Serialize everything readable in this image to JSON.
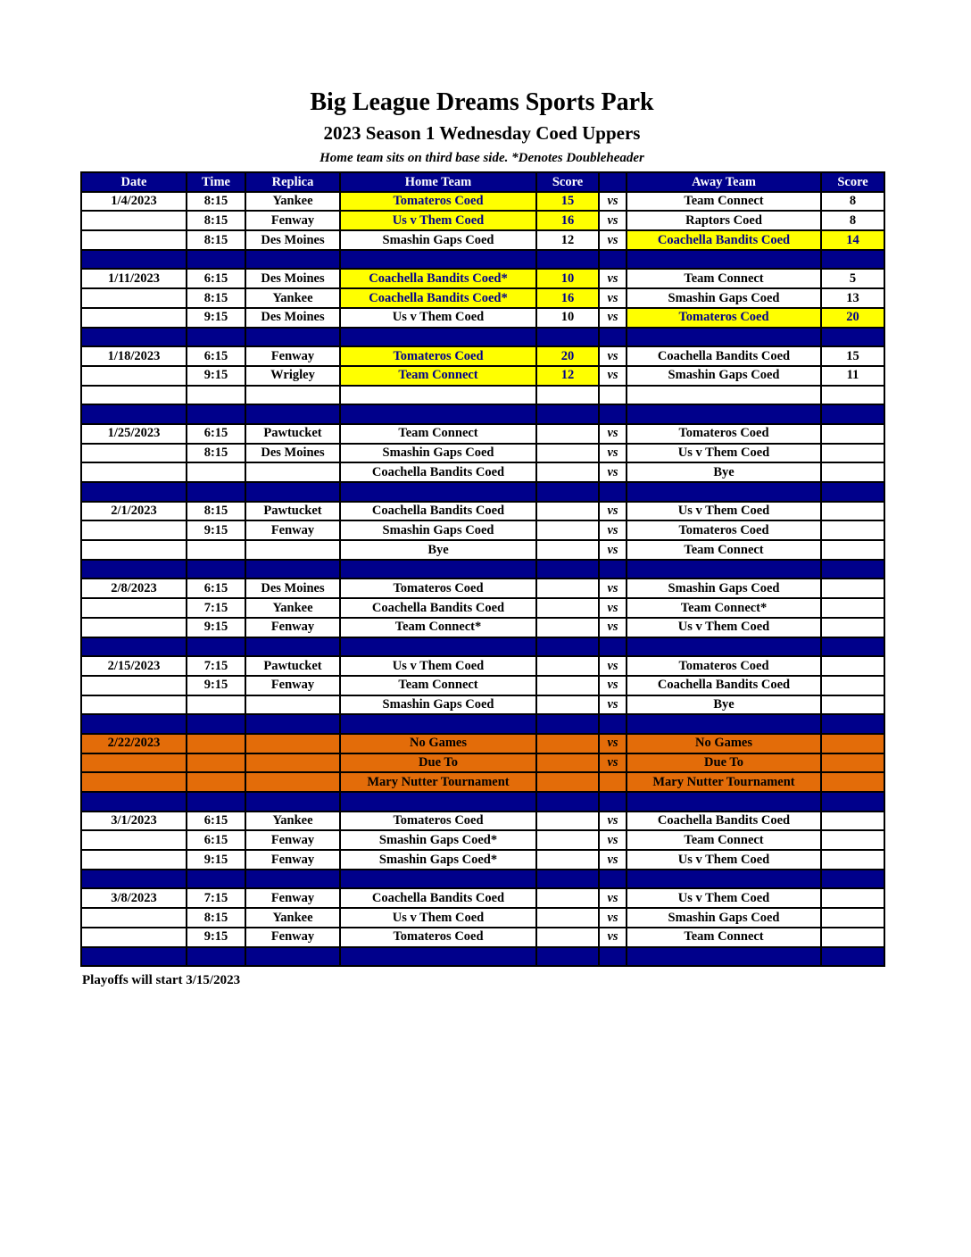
{
  "page": {
    "title": "Big League Dreams Sports Park",
    "subtitle": "2023 Season 1 Wednesday Coed Uppers",
    "note": "Home team sits on third base side.  *Denotes Doubleheader",
    "footer": "Playoffs will start 3/15/2023"
  },
  "colors": {
    "navy": "#00008B",
    "yellow_highlight": "#FFFF00",
    "orange_notice": "#E36C09",
    "highlight_text": "#00008B",
    "header_text": "#FFFFFF",
    "body_text": "#000000"
  },
  "table": {
    "headers": [
      "Date",
      "Time",
      "Replica",
      "Home Team",
      "Score",
      "",
      "Away Team",
      "Score"
    ],
    "rows": [
      {
        "type": "game",
        "date": "1/4/2023",
        "time": "8:15",
        "replica": "Yankee",
        "home": "Tomateros Coed",
        "home_score": "15",
        "vs": "vs",
        "away": "Team Connect",
        "away_score": "8",
        "home_hl": true,
        "away_hl": false
      },
      {
        "type": "game",
        "date": "",
        "time": "8:15",
        "replica": "Fenway",
        "home": "Us v Them Coed",
        "home_score": "16",
        "vs": "vs",
        "away": "Raptors Coed",
        "away_score": "8",
        "home_hl": true,
        "away_hl": false
      },
      {
        "type": "game",
        "date": "",
        "time": "8:15",
        "replica": "Des Moines",
        "home": "Smashin Gaps Coed",
        "home_score": "12",
        "vs": "vs",
        "away": "Coachella Bandits Coed",
        "away_score": "14",
        "home_hl": false,
        "away_hl": true
      },
      {
        "type": "separator"
      },
      {
        "type": "game",
        "date": "1/11/2023",
        "time": "6:15",
        "replica": "Des Moines",
        "home": "Coachella Bandits Coed*",
        "home_score": "10",
        "vs": "vs",
        "away": "Team Connect",
        "away_score": "5",
        "home_hl": true,
        "away_hl": false
      },
      {
        "type": "game",
        "date": "",
        "time": "8:15",
        "replica": "Yankee",
        "home": "Coachella Bandits Coed*",
        "home_score": "16",
        "vs": "vs",
        "away": "Smashin Gaps Coed",
        "away_score": "13",
        "home_hl": true,
        "away_hl": false
      },
      {
        "type": "game",
        "date": "",
        "time": "9:15",
        "replica": "Des Moines",
        "home": "Us v Them Coed",
        "home_score": "10",
        "vs": "vs",
        "away": "Tomateros Coed",
        "away_score": "20",
        "home_hl": false,
        "away_hl": true
      },
      {
        "type": "separator"
      },
      {
        "type": "game",
        "date": "1/18/2023",
        "time": "6:15",
        "replica": "Fenway",
        "home": "Tomateros Coed",
        "home_score": "20",
        "vs": "vs",
        "away": "Coachella Bandits Coed",
        "away_score": "15",
        "home_hl": true,
        "away_hl": false
      },
      {
        "type": "game",
        "date": "",
        "time": "9:15",
        "replica": "Wrigley",
        "home": "Team Connect",
        "home_score": "12",
        "vs": "vs",
        "away": "Smashin Gaps Coed",
        "away_score": "11",
        "home_hl": true,
        "away_hl": false
      },
      {
        "type": "game",
        "date": "",
        "time": "",
        "replica": "",
        "home": "",
        "home_score": "",
        "vs": "",
        "away": "",
        "away_score": "",
        "home_hl": false,
        "away_hl": false
      },
      {
        "type": "separator"
      },
      {
        "type": "game",
        "date": "1/25/2023",
        "time": "6:15",
        "replica": "Pawtucket",
        "home": "Team Connect",
        "home_score": "",
        "vs": "vs",
        "away": "Tomateros Coed",
        "away_score": "",
        "home_hl": false,
        "away_hl": false
      },
      {
        "type": "game",
        "date": "",
        "time": "8:15",
        "replica": "Des Moines",
        "home": "Smashin Gaps Coed",
        "home_score": "",
        "vs": "vs",
        "away": "Us v Them Coed",
        "away_score": "",
        "home_hl": false,
        "away_hl": false
      },
      {
        "type": "game",
        "date": "",
        "time": "",
        "replica": "",
        "home": "Coachella Bandits Coed",
        "home_score": "",
        "vs": "vs",
        "away": "Bye",
        "away_score": "",
        "home_hl": false,
        "away_hl": false
      },
      {
        "type": "separator"
      },
      {
        "type": "game",
        "date": "2/1/2023",
        "time": "8:15",
        "replica": "Pawtucket",
        "home": "Coachella Bandits Coed",
        "home_score": "",
        "vs": "vs",
        "away": "Us v Them Coed",
        "away_score": "",
        "home_hl": false,
        "away_hl": false
      },
      {
        "type": "game",
        "date": "",
        "time": "9:15",
        "replica": "Fenway",
        "home": "Smashin Gaps Coed",
        "home_score": "",
        "vs": "vs",
        "away": "Tomateros Coed",
        "away_score": "",
        "home_hl": false,
        "away_hl": false
      },
      {
        "type": "game",
        "date": "",
        "time": "",
        "replica": "",
        "home": "Bye",
        "home_score": "",
        "vs": "vs",
        "away": "Team Connect",
        "away_score": "",
        "home_hl": false,
        "away_hl": false
      },
      {
        "type": "separator"
      },
      {
        "type": "game",
        "date": "2/8/2023",
        "time": "6:15",
        "replica": "Des Moines",
        "home": "Tomateros Coed",
        "home_score": "",
        "vs": "vs",
        "away": "Smashin Gaps Coed",
        "away_score": "",
        "home_hl": false,
        "away_hl": false
      },
      {
        "type": "game",
        "date": "",
        "time": "7:15",
        "replica": "Yankee",
        "home": "Coachella Bandits Coed",
        "home_score": "",
        "vs": "vs",
        "away": "Team Connect*",
        "away_score": "",
        "home_hl": false,
        "away_hl": false
      },
      {
        "type": "game",
        "date": "",
        "time": "9:15",
        "replica": "Fenway",
        "home": "Team Connect*",
        "home_score": "",
        "vs": "vs",
        "away": "Us v Them Coed",
        "away_score": "",
        "home_hl": false,
        "away_hl": false
      },
      {
        "type": "separator"
      },
      {
        "type": "game",
        "date": "2/15/2023",
        "time": "7:15",
        "replica": "Pawtucket",
        "home": "Us v Them Coed",
        "home_score": "",
        "vs": "vs",
        "away": "Tomateros Coed",
        "away_score": "",
        "home_hl": false,
        "away_hl": false
      },
      {
        "type": "game",
        "date": "",
        "time": "9:15",
        "replica": "Fenway",
        "home": "Team Connect",
        "home_score": "",
        "vs": "vs",
        "away": "Coachella Bandits Coed",
        "away_score": "",
        "home_hl": false,
        "away_hl": false
      },
      {
        "type": "game",
        "date": "",
        "time": "",
        "replica": "",
        "home": "Smashin Gaps Coed",
        "home_score": "",
        "vs": "vs",
        "away": "Bye",
        "away_score": "",
        "home_hl": false,
        "away_hl": false
      },
      {
        "type": "separator"
      },
      {
        "type": "notice",
        "date": "2/22/2023",
        "time": "",
        "replica": "",
        "home": "No Games",
        "home_score": "",
        "vs": "vs",
        "away": "No Games",
        "away_score": ""
      },
      {
        "type": "notice",
        "date": "",
        "time": "",
        "replica": "",
        "home": "Due To",
        "home_score": "",
        "vs": "vs",
        "away": "Due To",
        "away_score": ""
      },
      {
        "type": "notice",
        "date": "",
        "time": "",
        "replica": "",
        "home": "Mary Nutter Tournament",
        "home_score": "",
        "vs": "",
        "away": "Mary Nutter Tournament",
        "away_score": ""
      },
      {
        "type": "separator"
      },
      {
        "type": "game",
        "date": "3/1/2023",
        "time": "6:15",
        "replica": "Yankee",
        "home": "Tomateros Coed",
        "home_score": "",
        "vs": "vs",
        "away": "Coachella Bandits Coed",
        "away_score": "",
        "home_hl": false,
        "away_hl": false
      },
      {
        "type": "game",
        "date": "",
        "time": "6:15",
        "replica": "Fenway",
        "home": "Smashin Gaps Coed*",
        "home_score": "",
        "vs": "vs",
        "away": "Team Connect",
        "away_score": "",
        "home_hl": false,
        "away_hl": false
      },
      {
        "type": "game",
        "date": "",
        "time": "9:15",
        "replica": "Fenway",
        "home": "Smashin Gaps Coed*",
        "home_score": "",
        "vs": "vs",
        "away": "Us v Them Coed",
        "away_score": "",
        "home_hl": false,
        "away_hl": false
      },
      {
        "type": "separator"
      },
      {
        "type": "game",
        "date": "3/8/2023",
        "time": "7:15",
        "replica": "Fenway",
        "home": "Coachella Bandits Coed",
        "home_score": "",
        "vs": "vs",
        "away": "Us v Them Coed",
        "away_score": "",
        "home_hl": false,
        "away_hl": false
      },
      {
        "type": "game",
        "date": "",
        "time": "8:15",
        "replica": "Yankee",
        "home": "Us v Them Coed",
        "home_score": "",
        "vs": "vs",
        "away": "Smashin Gaps Coed",
        "away_score": "",
        "home_hl": false,
        "away_hl": false
      },
      {
        "type": "game",
        "date": "",
        "time": "9:15",
        "replica": "Fenway",
        "home": "Tomateros Coed",
        "home_score": "",
        "vs": "vs",
        "away": "Team Connect",
        "away_score": "",
        "home_hl": false,
        "away_hl": false
      },
      {
        "type": "separator"
      }
    ]
  }
}
